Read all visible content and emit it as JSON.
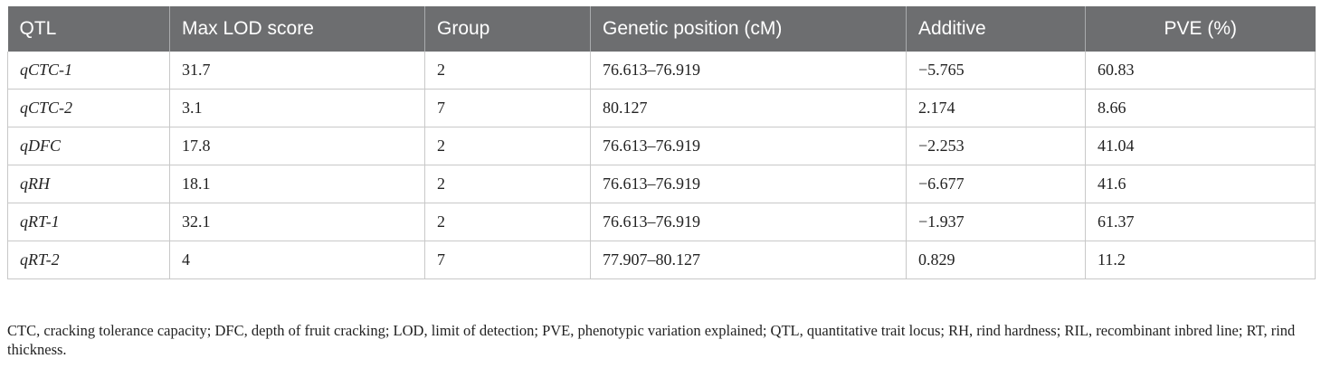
{
  "table": {
    "headers": [
      "QTL",
      "Max LOD score",
      "Group",
      "Genetic position (cM)",
      "Additive",
      "PVE (%)"
    ],
    "rows": [
      [
        "qCTC-1",
        "31.7",
        "2",
        "76.613–76.919",
        "−5.765",
        "60.83"
      ],
      [
        "qCTC-2",
        "3.1",
        "7",
        "80.127",
        "2.174",
        "8.66"
      ],
      [
        "qDFC",
        "17.8",
        "2",
        "76.613–76.919",
        "−2.253",
        "41.04"
      ],
      [
        "qRH",
        "18.1",
        "2",
        "76.613–76.919",
        "−6.677",
        "41.6"
      ],
      [
        "qRT-1",
        "32.1",
        "2",
        "76.613–76.919",
        "−1.937",
        "61.37"
      ],
      [
        "qRT-2",
        "4",
        "7",
        "77.907–80.127",
        "0.829",
        "11.2"
      ]
    ]
  },
  "footnote": "CTC, cracking tolerance capacity; DFC, depth of fruit cracking; LOD, limit of detection; PVE, phenotypic variation explained; QTL, quantitative trait locus; RH, rind hardness; RIL, recombinant inbred line; RT, rind thickness.",
  "colors": {
    "header_bg": "#6d6e70",
    "header_text": "#ffffff",
    "grid": "#c8c8c8"
  }
}
